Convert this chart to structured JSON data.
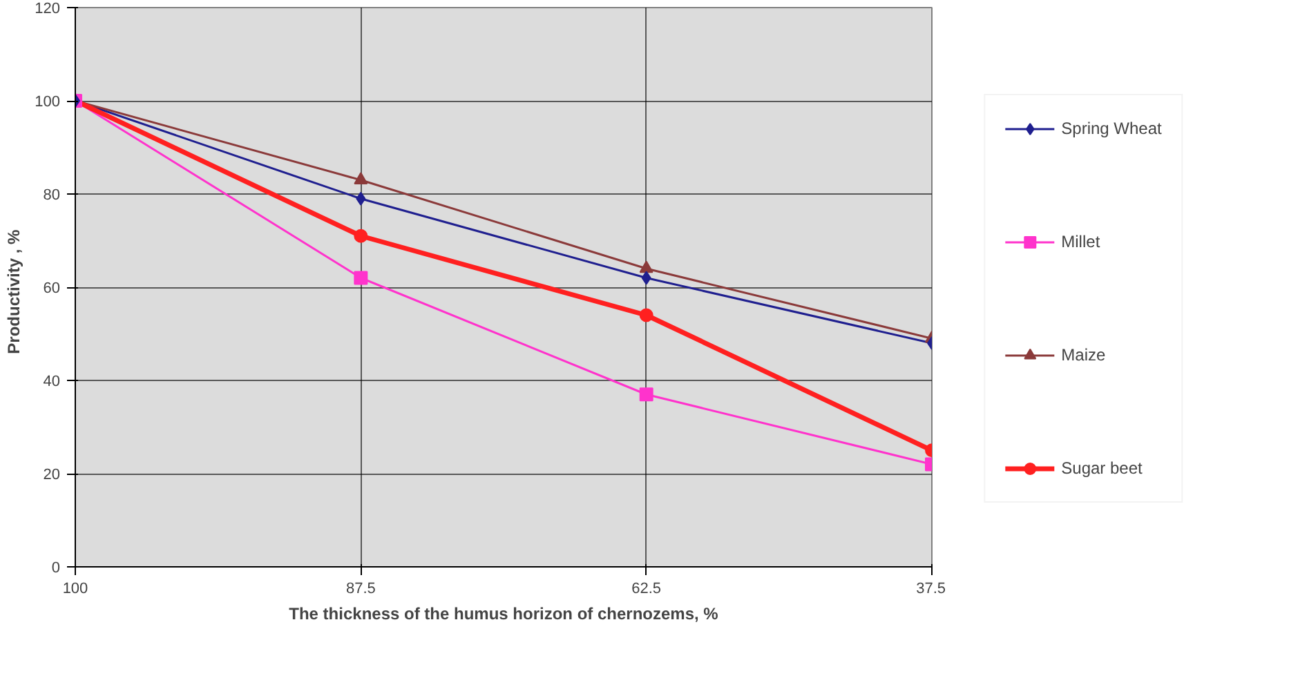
{
  "chart_data": {
    "type": "line",
    "xlabel": "The thickness of the humus horizon of chernozems, %",
    "ylabel": "Productivity   , %",
    "categories": [
      "100",
      "87.5",
      "62.5",
      "37.5"
    ],
    "ylim": [
      0,
      120
    ],
    "yticks": [
      0,
      20,
      40,
      60,
      80,
      100,
      120
    ],
    "grid": true,
    "legend": "right",
    "series": [
      {
        "name": "Spring Wheat",
        "color": "#1f1f8f",
        "values": [
          100,
          79,
          62,
          48
        ],
        "marker": "diamond"
      },
      {
        "name": "Millet",
        "color": "#ff33cc",
        "values": [
          100,
          62,
          37,
          22
        ],
        "marker": "square"
      },
      {
        "name": "Maize",
        "color": "#8b3a3a",
        "values": [
          100,
          83,
          64,
          49
        ],
        "marker": "triangle"
      },
      {
        "name": "Sugar beet",
        "color": "#ff2020",
        "values": [
          100,
          71,
          54,
          25
        ],
        "marker": "circle"
      }
    ]
  }
}
